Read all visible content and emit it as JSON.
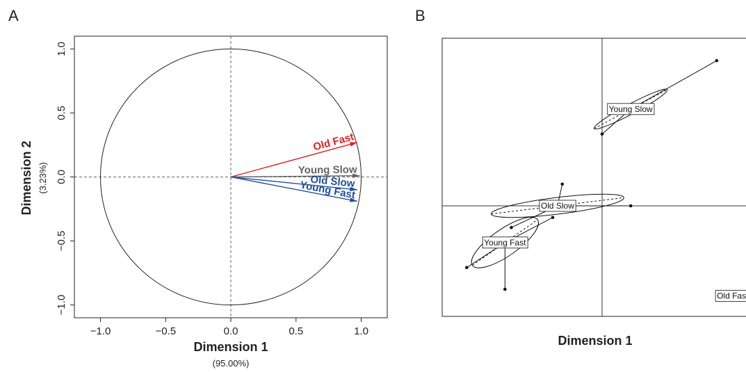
{
  "chart_data": [
    {
      "panel": "A",
      "type": "scatter",
      "xlabel": "Dimension 1",
      "xlabel_sub": "(95.00%)",
      "ylabel": "Dimension 2",
      "ylabel_sub": "(3.23%)",
      "xlim": [
        -1.2,
        1.2
      ],
      "ylim": [
        -1.1,
        1.1
      ],
      "xticks": [
        -1.0,
        -0.5,
        0.0,
        0.5,
        1.0
      ],
      "xtick_labels": [
        "−1.0",
        "−0.5",
        "0.0",
        "0.5",
        "1.0"
      ],
      "yticks": [
        -1.0,
        -0.5,
        0.0,
        0.5,
        1.0
      ],
      "ytick_labels": [
        "−1.0",
        "−0.5",
        "0.0",
        "0.5",
        "1.0"
      ],
      "unit_circle": true,
      "vectors": [
        {
          "name": "Old Fast",
          "x": 0.97,
          "y": 0.27,
          "color": "#e02020",
          "bold": true
        },
        {
          "name": "Young Slow",
          "x": 0.99,
          "y": 0.01,
          "color": "#666666",
          "bold": false
        },
        {
          "name": "Old Slow",
          "x": 0.97,
          "y": -0.1,
          "color": "#1f4e9e",
          "bold": true
        },
        {
          "name": "Young Fast",
          "x": 0.97,
          "y": -0.19,
          "color": "#1f4e9e",
          "bold": true
        }
      ]
    },
    {
      "panel": "B",
      "type": "scatter",
      "xlabel": "Dimension 1",
      "xlim": [
        -1.0,
        1.0
      ],
      "ylim": [
        -1.0,
        1.0
      ],
      "groups": [
        {
          "name": "Young Slow",
          "center": [
            0.18,
            0.58
          ],
          "color": "#111111",
          "points": [
            [
              0.72,
              0.87
            ],
            [
              0.0,
              0.43
            ]
          ],
          "ellipse": {
            "rx": 0.26,
            "ry": 0.03,
            "angle": 28
          }
        },
        {
          "name": "Old Slow",
          "center": [
            -0.28,
            0.0
          ],
          "color": "#111111",
          "points": [
            [
              -0.25,
              0.13
            ],
            [
              0.18,
              0.0
            ],
            [
              -0.57,
              -0.13
            ]
          ],
          "ellipse": {
            "rx": 0.42,
            "ry": 0.05,
            "angle": 7
          }
        },
        {
          "name": "Young Fast",
          "center": [
            -0.61,
            -0.22
          ],
          "color": "#111111",
          "points": [
            [
              -0.85,
              -0.37
            ],
            [
              -0.61,
              -0.5
            ],
            [
              -0.31,
              -0.07
            ]
          ],
          "ellipse": {
            "rx": 0.25,
            "ry": 0.08,
            "angle": 35
          }
        },
        {
          "name": "Old Fast",
          "center": [
            0.82,
            -0.54
          ],
          "color": "#e02020",
          "points": [],
          "ellipse": null
        }
      ]
    }
  ],
  "panel_labels": [
    "A",
    "B"
  ]
}
